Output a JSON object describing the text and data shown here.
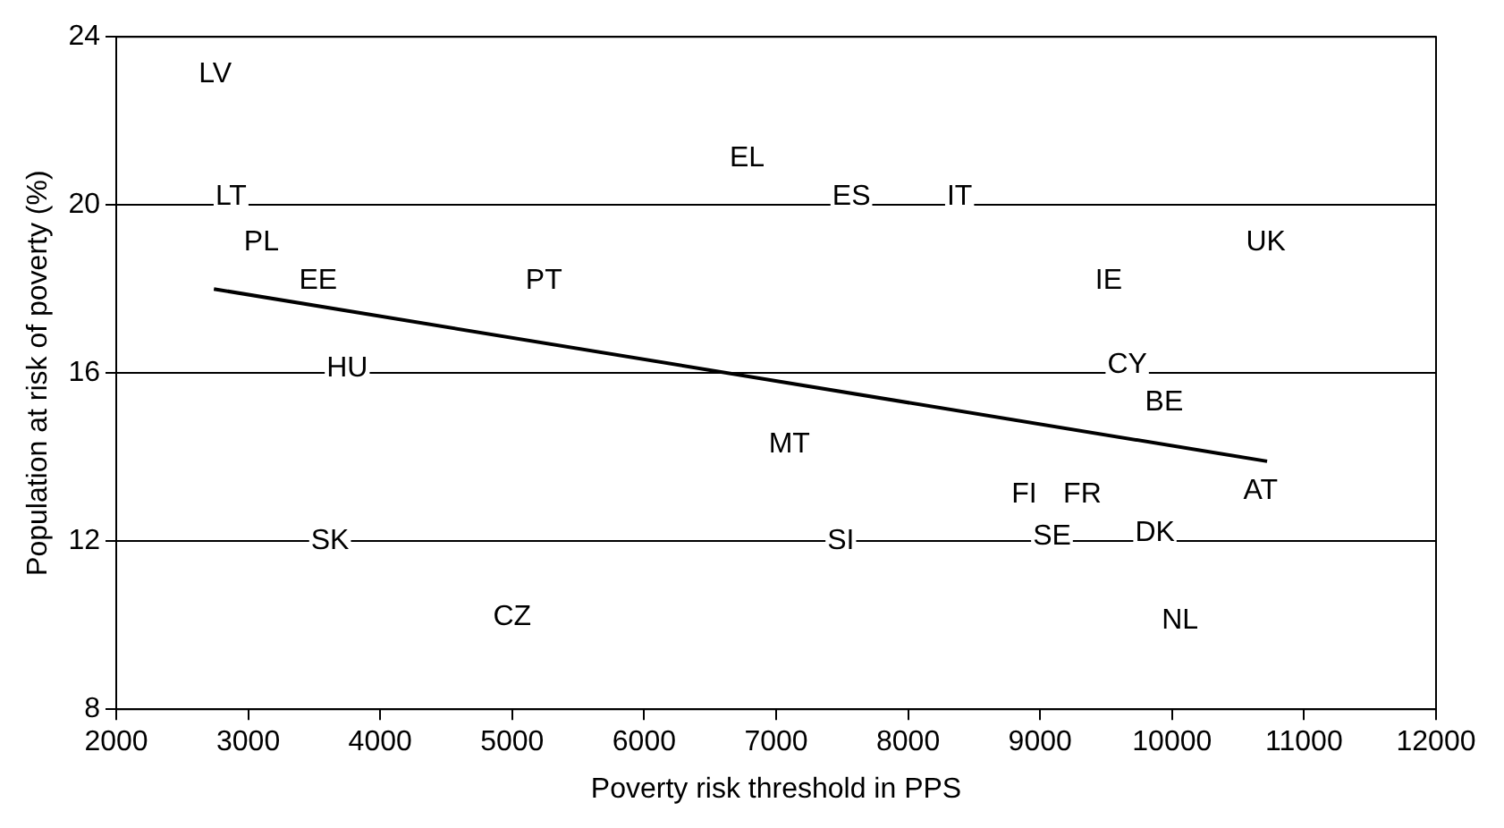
{
  "chart_data": {
    "type": "scatter",
    "xlabel": "Poverty risk threshold in PPS",
    "ylabel": "Population at risk of poverty (%)",
    "xlim": [
      2000,
      12000
    ],
    "xticks": [
      2000,
      3000,
      4000,
      5000,
      6000,
      7000,
      8000,
      9000,
      10000,
      11000,
      12000
    ],
    "ylim": [
      8,
      24
    ],
    "yticks": [
      8,
      12,
      16,
      20,
      24
    ],
    "grid": "y",
    "legend": false,
    "series": [
      {
        "type": "line",
        "color": "#000000",
        "line_style": "solid",
        "x": [
          2740,
          10720
        ],
        "values": [
          18.0,
          13.9
        ]
      }
    ],
    "annotations": [
      {
        "text": "LV",
        "x": 2750,
        "y": 23.1
      },
      {
        "text": "LT",
        "x": 2870,
        "y": 20.2
      },
      {
        "text": "PL",
        "x": 3100,
        "y": 19.1
      },
      {
        "text": "EE",
        "x": 3530,
        "y": 18.2
      },
      {
        "text": "HU",
        "x": 3750,
        "y": 16.1
      },
      {
        "text": "SK",
        "x": 3620,
        "y": 12.0
      },
      {
        "text": "CZ",
        "x": 5000,
        "y": 10.2
      },
      {
        "text": "PT",
        "x": 5240,
        "y": 18.2
      },
      {
        "text": "EL",
        "x": 6780,
        "y": 21.1
      },
      {
        "text": "MT",
        "x": 7100,
        "y": 14.3
      },
      {
        "text": "ES",
        "x": 7570,
        "y": 20.2
      },
      {
        "text": "SI",
        "x": 7490,
        "y": 12.0
      },
      {
        "text": "IT",
        "x": 8390,
        "y": 20.2
      },
      {
        "text": "FI",
        "x": 8880,
        "y": 13.1
      },
      {
        "text": "SE",
        "x": 9090,
        "y": 12.1
      },
      {
        "text": "FR",
        "x": 9320,
        "y": 13.1
      },
      {
        "text": "IE",
        "x": 9520,
        "y": 18.2
      },
      {
        "text": "CY",
        "x": 9660,
        "y": 16.2
      },
      {
        "text": "DK",
        "x": 9870,
        "y": 12.2
      },
      {
        "text": "BE",
        "x": 9940,
        "y": 15.3
      },
      {
        "text": "NL",
        "x": 10060,
        "y": 10.1
      },
      {
        "text": "AT",
        "x": 10670,
        "y": 13.2
      },
      {
        "text": "UK",
        "x": 10710,
        "y": 19.1
      }
    ]
  }
}
